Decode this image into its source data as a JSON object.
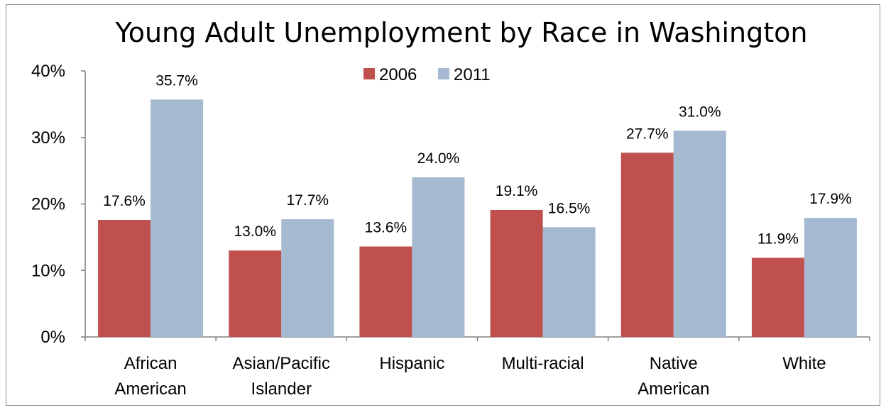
{
  "chart_data": {
    "type": "bar",
    "title": "Young Adult Unemployment by Race in Washington",
    "categories": [
      [
        "African",
        "American"
      ],
      [
        "Asian/Pacific",
        "Islander"
      ],
      [
        "Hispanic"
      ],
      [
        "Multi-racial"
      ],
      [
        "Native",
        "American"
      ],
      [
        "White"
      ]
    ],
    "series": [
      {
        "name": "2006",
        "color": "#c0504d",
        "values": [
          17.6,
          13.0,
          13.6,
          19.1,
          27.7,
          11.9
        ],
        "labels": [
          "17.6%",
          "13.0%",
          "13.6%",
          "19.1%",
          "27.7%",
          "11.9%"
        ]
      },
      {
        "name": "2011",
        "color": "#a5b9d0",
        "values": [
          35.7,
          17.7,
          24.0,
          16.5,
          31.0,
          17.9
        ],
        "labels": [
          "35.7%",
          "17.7%",
          "24.0%",
          "16.5%",
          "31.0%",
          "17.9%"
        ]
      }
    ],
    "y_ticks": [
      "0%",
      "10%",
      "20%",
      "30%",
      "40%"
    ],
    "ylim": [
      0,
      40
    ],
    "xlabel": "",
    "ylabel": "",
    "grid": false,
    "legend": "top-center",
    "axis_color": "#808080"
  }
}
